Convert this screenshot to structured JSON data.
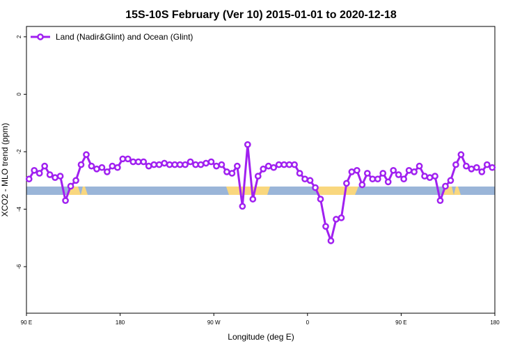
{
  "chart_data": {
    "type": "line",
    "title": "15S-10S February (Ver 10)   2015-01-01 to 2020-12-18",
    "x_label": "Longitude (deg E)",
    "y_label": "XCO2 - MLO trend (ppm)",
    "x": [
      92.5,
      97.5,
      102.5,
      107.5,
      112.5,
      117.5,
      122.5,
      127.5,
      132.5,
      137.5,
      142.5,
      147.5,
      152.5,
      157.5,
      162.5,
      167.5,
      172.5,
      177.5,
      182.5,
      187.5,
      192.5,
      197.5,
      202.5,
      207.5,
      212.5,
      217.5,
      222.5,
      227.5,
      232.5,
      237.5,
      242.5,
      247.5,
      252.5,
      257.5,
      262.5,
      267.5,
      272.5,
      277.5,
      282.5,
      287.5,
      292.5,
      297.5,
      302.5,
      307.5,
      312.5,
      317.5,
      322.5,
      327.5,
      332.5,
      337.5,
      342.5,
      347.5,
      352.5,
      357.5,
      362.5,
      367.5,
      372.5,
      377.5,
      382.5,
      387.5,
      392.5,
      397.5,
      402.5,
      407.5,
      412.5,
      417.5,
      422.5,
      427.5,
      432.5,
      437.5,
      442.5,
      447.5,
      452.5,
      457.5,
      462.5,
      467.5,
      472.5,
      477.5,
      482.5,
      487.5,
      492.5,
      497.5,
      502.5,
      507.5,
      512.5,
      517.5,
      522.5,
      527.5,
      532.5,
      537.5
    ],
    "series": [
      {
        "name": "Land (Nadir&Glint) and Ocean (Glint)",
        "color": "#a020f0",
        "values": [
          -2.95,
          -2.65,
          -2.75,
          -2.5,
          -2.8,
          -2.9,
          -2.85,
          -3.7,
          -3.2,
          -3.0,
          -2.45,
          -2.1,
          -2.5,
          -2.6,
          -2.55,
          -2.7,
          -2.5,
          -2.55,
          -2.25,
          -2.25,
          -2.35,
          -2.35,
          -2.35,
          -2.5,
          -2.45,
          -2.45,
          -2.4,
          -2.45,
          -2.45,
          -2.45,
          -2.45,
          -2.35,
          -2.45,
          -2.45,
          -2.4,
          -2.35,
          -2.5,
          -2.45,
          -2.7,
          -2.75,
          -2.5,
          -3.9,
          -1.75,
          -3.65,
          -2.85,
          -2.6,
          -2.5,
          -2.55,
          -2.45,
          -2.45,
          -2.45,
          -2.45,
          -2.75,
          -2.95,
          -3.0,
          -3.25,
          -3.65,
          -4.6,
          -5.1,
          -4.35,
          -4.3,
          -3.1,
          -2.7,
          -2.65,
          -3.15,
          -2.75,
          -2.95,
          -2.95,
          -2.75,
          -3.05,
          -2.65,
          -2.8,
          -2.95,
          -2.65,
          -2.7,
          -2.5,
          -2.85,
          -2.9,
          -2.85,
          -3.7,
          -3.2,
          -3.0,
          -2.45,
          -2.1,
          -2.5,
          -2.6,
          -2.55,
          -2.7,
          -2.45,
          -2.55
        ]
      }
    ],
    "xlim": [
      90,
      540
    ],
    "xticks": [
      {
        "value": 90,
        "label": "90 E"
      },
      180,
      {
        "value": 270,
        "label": "90 W"
      },
      {
        "value": 360,
        "label": "0"
      },
      {
        "value": 450,
        "label": "90 E"
      },
      {
        "value": 540,
        "label": "180"
      }
    ],
    "ylim": [
      -7.62,
      2.36
    ],
    "yticks": [
      -6,
      -4,
      -2,
      0,
      2
    ],
    "legend": "top-left"
  }
}
